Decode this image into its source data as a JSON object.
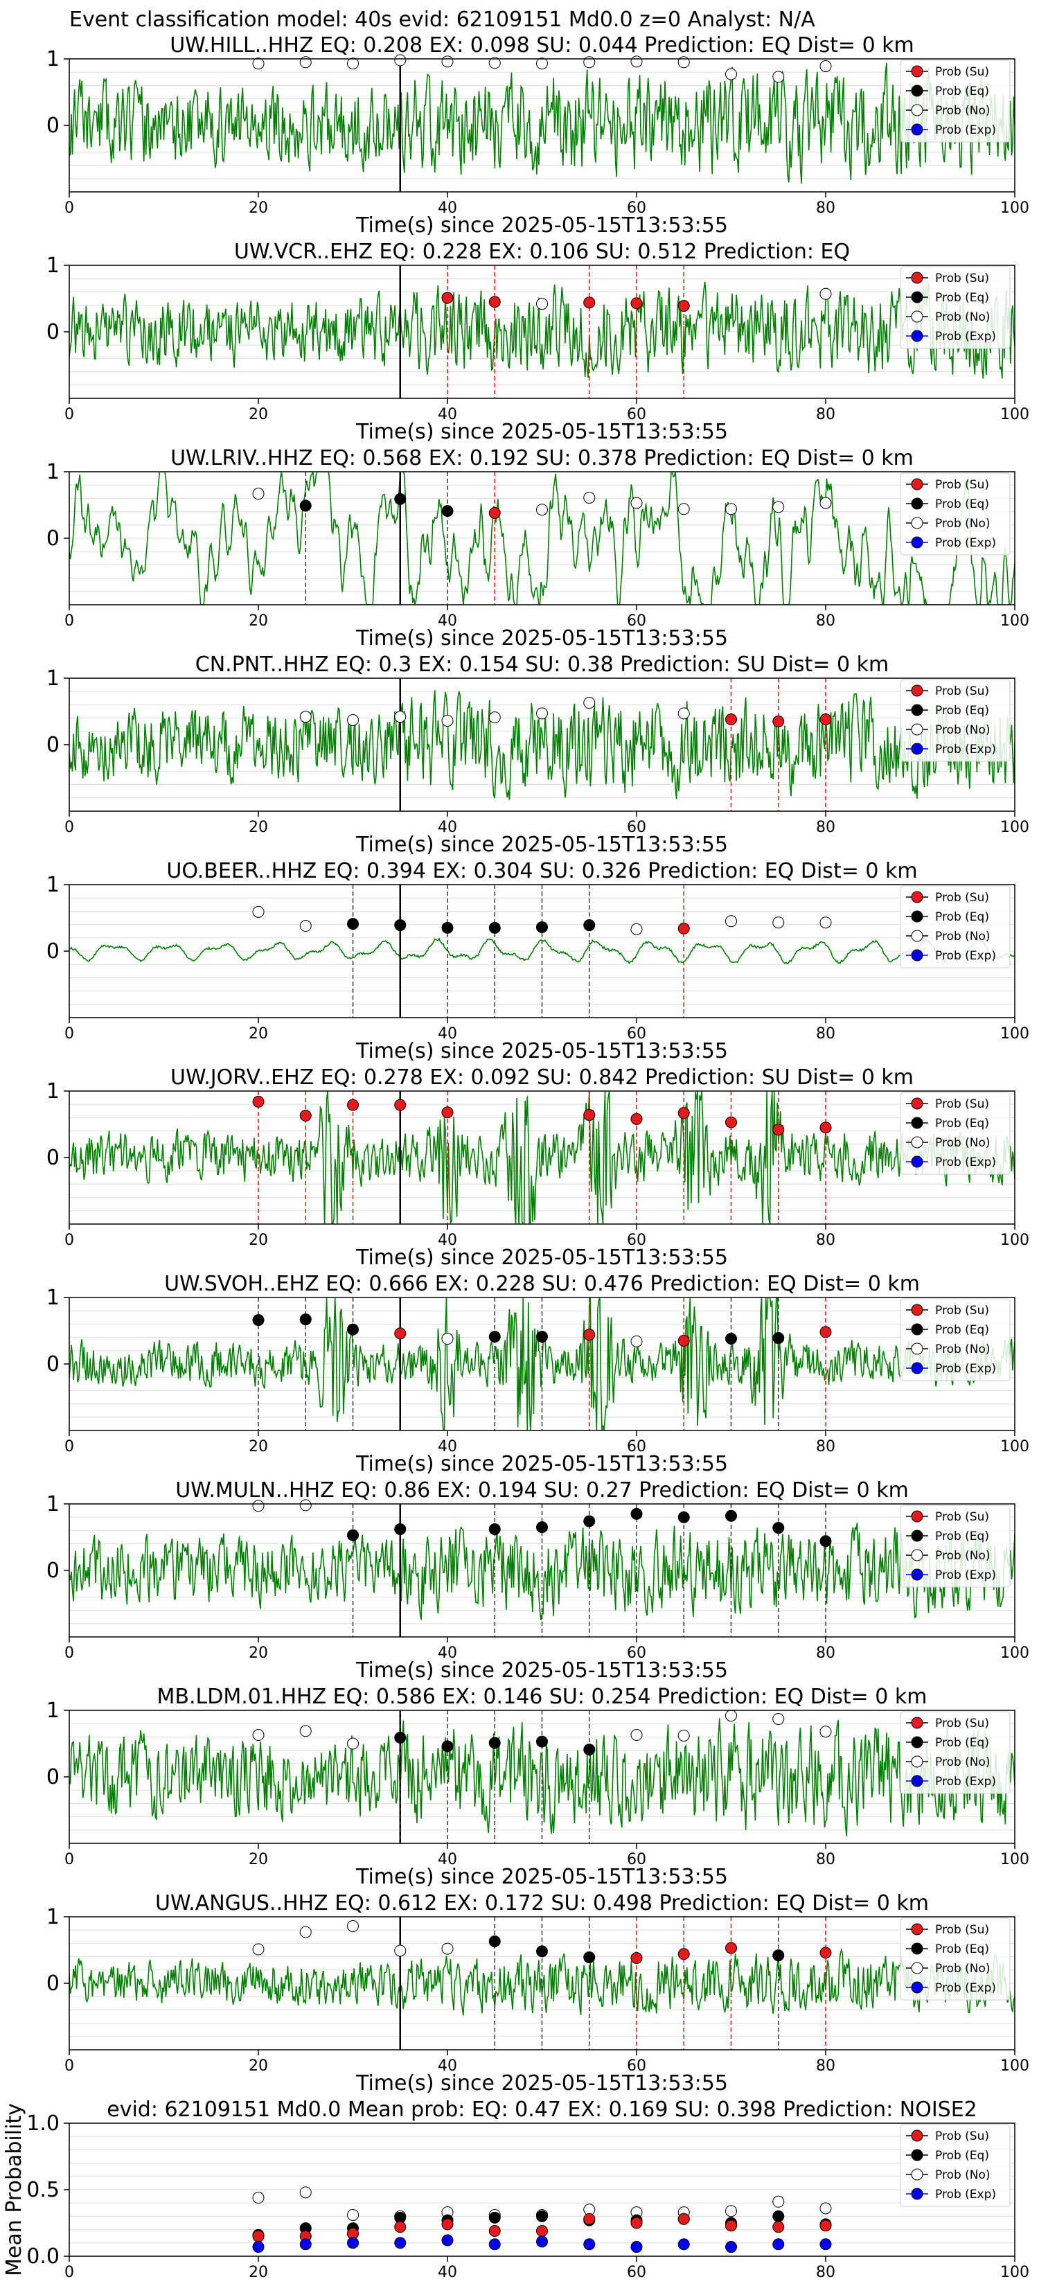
{
  "figure": {
    "suptitle": "Event classification model: 40s evid: 62109151 Md0.0 z=0 Analyst: N/A",
    "legend_labels": [
      "Prob (Su)",
      "Prob (Eq)",
      "Prob (No)",
      "Prob (Exp)"
    ],
    "colors": {
      "su": "#e41a1c",
      "eq": "#000000",
      "no": "#ffffff",
      "exp": "#0000ee",
      "waveform": "#008000",
      "su_line": "#ff0000",
      "eq_line": "#333333"
    },
    "xlabel": "Time(s) since 2025-05-15T13:53:55",
    "x_ticks": [
      "0",
      "20",
      "40",
      "60",
      "80",
      "100"
    ],
    "y_ticks": [
      "1",
      "0"
    ],
    "mean_y_ticks": [
      "1.0",
      "0.5",
      "0.0"
    ],
    "mean_ylabel": "Mean Probability"
  },
  "chart_data": [
    {
      "type": "line",
      "station": "UW.HILL..HHZ",
      "title": "UW.HILL..HHZ   EQ: 0.208  EX: 0.098  SU: 0.044   Prediction: EQ    Dist= 0 km",
      "xlim": [
        0,
        100
      ],
      "ylim": [
        -1,
        1
      ],
      "arrival": 35,
      "seed": 11,
      "character": "noisy",
      "amp": 0.55,
      "points": [
        [
          20,
          "no",
          0.93
        ],
        [
          25,
          "no",
          0.95
        ],
        [
          30,
          "no",
          0.93
        ],
        [
          35,
          "no",
          0.98
        ],
        [
          40,
          "no",
          0.96
        ],
        [
          45,
          "no",
          0.94
        ],
        [
          50,
          "no",
          0.93
        ],
        [
          55,
          "no",
          0.95
        ],
        [
          60,
          "no",
          0.96
        ],
        [
          65,
          "no",
          0.95
        ],
        [
          70,
          "no",
          0.77
        ],
        [
          75,
          "no",
          0.73
        ],
        [
          80,
          "no",
          0.89
        ]
      ],
      "markers": []
    },
    {
      "type": "line",
      "station": "UW.VCR..EHZ",
      "title": "UW.VCR..EHZ   EQ: 0.228  EX: 0.106  SU: 0.512   Prediction: EQ",
      "xlim": [
        0,
        100
      ],
      "ylim": [
        -1,
        1
      ],
      "arrival": 35,
      "seed": 23,
      "character": "noisy",
      "amp": 0.45,
      "points": [
        [
          40,
          "su",
          0.51
        ],
        [
          45,
          "su",
          0.45
        ],
        [
          50,
          "no",
          0.42
        ],
        [
          55,
          "su",
          0.44
        ],
        [
          60,
          "su",
          0.43
        ],
        [
          65,
          "su",
          0.39
        ],
        [
          80,
          "no",
          0.57
        ]
      ],
      "markers": [
        [
          40,
          "su"
        ],
        [
          45,
          "su"
        ],
        [
          55,
          "su"
        ],
        [
          60,
          "su"
        ],
        [
          65,
          "su"
        ]
      ]
    },
    {
      "type": "line",
      "station": "UW.LRIV..HHZ",
      "title": "UW.LRIV..HHZ   EQ: 0.568  EX: 0.192  SU: 0.378   Prediction: EQ    Dist= 0 km",
      "xlim": [
        0,
        100
      ],
      "ylim": [
        -1,
        1
      ],
      "arrival": 35,
      "seed": 37,
      "character": "smooth",
      "amp": 0.55,
      "points": [
        [
          20,
          "no",
          0.67
        ],
        [
          25,
          "eq",
          0.49
        ],
        [
          35,
          "eq",
          0.59
        ],
        [
          40,
          "eq",
          0.41
        ],
        [
          45,
          "su",
          0.38
        ],
        [
          50,
          "no",
          0.43
        ],
        [
          55,
          "no",
          0.61
        ],
        [
          60,
          "no",
          0.53
        ],
        [
          65,
          "no",
          0.44
        ],
        [
          70,
          "no",
          0.44
        ],
        [
          75,
          "no",
          0.47
        ],
        [
          80,
          "no",
          0.53
        ]
      ],
      "markers": [
        [
          25,
          "eq"
        ],
        [
          40,
          "eq"
        ],
        [
          45,
          "su"
        ]
      ]
    },
    {
      "type": "line",
      "station": "CN.PNT..HHZ",
      "title": "CN.PNT..HHZ   EQ: 0.3  EX: 0.154  SU: 0.38   Prediction: SU    Dist= 0 km",
      "xlim": [
        0,
        100
      ],
      "ylim": [
        -1,
        1
      ],
      "arrival": 35,
      "seed": 41,
      "character": "noisy",
      "amp": 0.5,
      "points": [
        [
          25,
          "no",
          0.42
        ],
        [
          30,
          "no",
          0.37
        ],
        [
          35,
          "no",
          0.42
        ],
        [
          40,
          "no",
          0.36
        ],
        [
          45,
          "no",
          0.41
        ],
        [
          50,
          "no",
          0.47
        ],
        [
          55,
          "no",
          0.63
        ],
        [
          65,
          "no",
          0.47
        ],
        [
          70,
          "su",
          0.38
        ],
        [
          75,
          "su",
          0.35
        ],
        [
          80,
          "su",
          0.38
        ]
      ],
      "markers": [
        [
          70,
          "su"
        ],
        [
          75,
          "su"
        ],
        [
          80,
          "su"
        ]
      ]
    },
    {
      "type": "line",
      "station": "UO.BEER..HHZ",
      "title": "UO.BEER..HHZ   EQ: 0.394  EX: 0.304  SU: 0.326   Prediction: EQ    Dist= 0 km",
      "xlim": [
        0,
        100
      ],
      "ylim": [
        -1,
        1
      ],
      "arrival": 35,
      "seed": 53,
      "character": "calm",
      "amp": 0.12,
      "points": [
        [
          20,
          "no",
          0.59
        ],
        [
          25,
          "no",
          0.38
        ],
        [
          30,
          "eq",
          0.41
        ],
        [
          35,
          "eq",
          0.39
        ],
        [
          40,
          "eq",
          0.35
        ],
        [
          45,
          "eq",
          0.35
        ],
        [
          50,
          "eq",
          0.36
        ],
        [
          55,
          "eq",
          0.39
        ],
        [
          60,
          "no",
          0.33
        ],
        [
          65,
          "su",
          0.34
        ],
        [
          70,
          "no",
          0.45
        ],
        [
          75,
          "no",
          0.43
        ],
        [
          80,
          "no",
          0.43
        ]
      ],
      "markers": [
        [
          30,
          "eq"
        ],
        [
          40,
          "eq"
        ],
        [
          45,
          "eq"
        ],
        [
          50,
          "eq"
        ],
        [
          55,
          "eq"
        ],
        [
          65,
          "su"
        ]
      ]
    },
    {
      "type": "line",
      "station": "UW.JORV..EHZ",
      "title": "UW.JORV..EHZ   EQ: 0.278  EX: 0.092  SU: 0.842   Prediction: SU    Dist= 0 km",
      "xlim": [
        0,
        100
      ],
      "ylim": [
        -1,
        1
      ],
      "arrival": 35,
      "seed": 67,
      "character": "spiky",
      "amp": 0.35,
      "points": [
        [
          20,
          "su",
          0.84
        ],
        [
          25,
          "su",
          0.63
        ],
        [
          30,
          "su",
          0.79
        ],
        [
          35,
          "su",
          0.79
        ],
        [
          40,
          "su",
          0.68
        ],
        [
          55,
          "su",
          0.64
        ],
        [
          60,
          "su",
          0.58
        ],
        [
          65,
          "su",
          0.67
        ],
        [
          70,
          "su",
          0.53
        ],
        [
          75,
          "su",
          0.42
        ],
        [
          80,
          "su",
          0.45
        ]
      ],
      "markers": [
        [
          20,
          "su"
        ],
        [
          25,
          "su"
        ],
        [
          30,
          "su"
        ],
        [
          40,
          "su"
        ],
        [
          55,
          "su"
        ],
        [
          60,
          "su"
        ],
        [
          65,
          "su"
        ],
        [
          70,
          "su"
        ],
        [
          75,
          "su"
        ],
        [
          80,
          "su"
        ]
      ]
    },
    {
      "type": "line",
      "station": "UW.SVOH..EHZ",
      "title": "UW.SVOH..EHZ   EQ: 0.666  EX: 0.228  SU: 0.476   Prediction: EQ    Dist= 0 km",
      "xlim": [
        0,
        100
      ],
      "ylim": [
        -1,
        1
      ],
      "arrival": 35,
      "seed": 79,
      "character": "spiky",
      "amp": 0.3,
      "points": [
        [
          20,
          "eq",
          0.66
        ],
        [
          25,
          "eq",
          0.67
        ],
        [
          30,
          "eq",
          0.52
        ],
        [
          35,
          "su",
          0.46
        ],
        [
          40,
          "no",
          0.38
        ],
        [
          45,
          "eq",
          0.41
        ],
        [
          50,
          "eq",
          0.41
        ],
        [
          55,
          "su",
          0.44
        ],
        [
          60,
          "no",
          0.34
        ],
        [
          65,
          "su",
          0.35
        ],
        [
          70,
          "eq",
          0.38
        ],
        [
          75,
          "eq",
          0.39
        ],
        [
          80,
          "su",
          0.48
        ]
      ],
      "markers": [
        [
          20,
          "eq"
        ],
        [
          25,
          "eq"
        ],
        [
          30,
          "eq"
        ],
        [
          45,
          "eq"
        ],
        [
          50,
          "eq"
        ],
        [
          55,
          "su"
        ],
        [
          65,
          "su"
        ],
        [
          70,
          "eq"
        ],
        [
          75,
          "eq"
        ],
        [
          80,
          "su"
        ]
      ]
    },
    {
      "type": "line",
      "station": "UW.MULN..HHZ",
      "title": "UW.MULN..HHZ   EQ: 0.86  EX: 0.194  SU: 0.27   Prediction: EQ    Dist= 0 km",
      "xlim": [
        0,
        100
      ],
      "ylim": [
        -1,
        1
      ],
      "arrival": 35,
      "seed": 83,
      "character": "noisy",
      "amp": 0.45,
      "points": [
        [
          20,
          "no",
          0.97
        ],
        [
          25,
          "no",
          0.98
        ],
        [
          30,
          "eq",
          0.53
        ],
        [
          35,
          "eq",
          0.62
        ],
        [
          45,
          "eq",
          0.62
        ],
        [
          50,
          "eq",
          0.65
        ],
        [
          55,
          "eq",
          0.74
        ],
        [
          60,
          "eq",
          0.85
        ],
        [
          65,
          "eq",
          0.8
        ],
        [
          70,
          "eq",
          0.82
        ],
        [
          75,
          "eq",
          0.64
        ],
        [
          80,
          "eq",
          0.44
        ]
      ],
      "markers": [
        [
          30,
          "eq"
        ],
        [
          45,
          "eq"
        ],
        [
          50,
          "eq"
        ],
        [
          55,
          "eq"
        ],
        [
          60,
          "eq"
        ],
        [
          65,
          "eq"
        ],
        [
          70,
          "eq"
        ],
        [
          75,
          "eq"
        ],
        [
          80,
          "eq"
        ]
      ]
    },
    {
      "type": "line",
      "station": "MB.LDM.01.HHZ",
      "title": "MB.LDM.01.HHZ   EQ: 0.586  EX: 0.146  SU: 0.254   Prediction: EQ    Dist= 0 km",
      "xlim": [
        0,
        100
      ],
      "ylim": [
        -1,
        1
      ],
      "arrival": 35,
      "seed": 97,
      "character": "noisy",
      "amp": 0.55,
      "points": [
        [
          20,
          "no",
          0.63
        ],
        [
          25,
          "no",
          0.69
        ],
        [
          30,
          "no",
          0.5
        ],
        [
          35,
          "eq",
          0.59
        ],
        [
          40,
          "eq",
          0.46
        ],
        [
          45,
          "eq",
          0.51
        ],
        [
          50,
          "eq",
          0.53
        ],
        [
          55,
          "eq",
          0.41
        ],
        [
          60,
          "no",
          0.63
        ],
        [
          65,
          "no",
          0.62
        ],
        [
          70,
          "no",
          0.92
        ],
        [
          75,
          "no",
          0.87
        ],
        [
          80,
          "no",
          0.68
        ]
      ],
      "markers": [
        [
          35,
          "eq"
        ],
        [
          40,
          "eq"
        ],
        [
          45,
          "eq"
        ],
        [
          50,
          "eq"
        ],
        [
          55,
          "eq"
        ]
      ]
    },
    {
      "type": "line",
      "station": "UW.ANGUS..HHZ",
      "title": "UW.ANGUS..HHZ   EQ: 0.612  EX: 0.172  SU: 0.498   Prediction: EQ    Dist= 0 km",
      "xlim": [
        0,
        100
      ],
      "ylim": [
        -1,
        1
      ],
      "arrival": 35,
      "seed": 101,
      "character": "noisy",
      "amp": 0.3,
      "points": [
        [
          20,
          "no",
          0.51
        ],
        [
          25,
          "no",
          0.77
        ],
        [
          30,
          "no",
          0.86
        ],
        [
          35,
          "no",
          0.49
        ],
        [
          40,
          "no",
          0.52
        ],
        [
          45,
          "eq",
          0.63
        ],
        [
          50,
          "eq",
          0.48
        ],
        [
          55,
          "eq",
          0.39
        ],
        [
          60,
          "su",
          0.38
        ],
        [
          65,
          "su",
          0.44
        ],
        [
          70,
          "su",
          0.53
        ],
        [
          75,
          "eq",
          0.42
        ],
        [
          80,
          "su",
          0.46
        ]
      ],
      "markers": [
        [
          45,
          "eq"
        ],
        [
          50,
          "eq"
        ],
        [
          55,
          "eq"
        ],
        [
          60,
          "su"
        ],
        [
          65,
          "su"
        ],
        [
          70,
          "su"
        ],
        [
          75,
          "eq"
        ],
        [
          80,
          "su"
        ]
      ]
    },
    {
      "type": "scatter",
      "title": "evid: 62109151  Md0.0   Mean prob:   EQ: 0.47  EX: 0.169  SU: 0.398   Prediction: NOISE2",
      "xlim": [
        0,
        100
      ],
      "ylim": [
        0,
        1
      ],
      "ylabel": "Mean Probability",
      "series": [
        {
          "name": "Prob (No)",
          "key": "no",
          "x": [
            20,
            25,
            30,
            35,
            40,
            45,
            50,
            55,
            60,
            65,
            70,
            75,
            80
          ],
          "values": [
            0.44,
            0.48,
            0.31,
            0.3,
            0.33,
            0.31,
            0.31,
            0.35,
            0.33,
            0.33,
            0.34,
            0.41,
            0.36
          ]
        },
        {
          "name": "Prob (Eq)",
          "key": "eq",
          "x": [
            20,
            25,
            30,
            35,
            40,
            45,
            50,
            55,
            60,
            65,
            70,
            75,
            80
          ],
          "values": [
            0.16,
            0.21,
            0.21,
            0.29,
            0.27,
            0.29,
            0.3,
            0.27,
            0.27,
            0.28,
            0.25,
            0.3,
            0.24
          ]
        },
        {
          "name": "Prob (Su)",
          "key": "su",
          "x": [
            20,
            25,
            30,
            35,
            40,
            45,
            50,
            55,
            60,
            65,
            70,
            75,
            80
          ],
          "values": [
            0.15,
            0.15,
            0.17,
            0.22,
            0.24,
            0.19,
            0.19,
            0.28,
            0.25,
            0.28,
            0.23,
            0.22,
            0.23
          ]
        },
        {
          "name": "Prob (Exp)",
          "key": "exp",
          "x": [
            20,
            25,
            30,
            35,
            40,
            45,
            50,
            55,
            60,
            65,
            70,
            75,
            80
          ],
          "values": [
            0.07,
            0.09,
            0.1,
            0.1,
            0.12,
            0.09,
            0.11,
            0.09,
            0.07,
            0.09,
            0.07,
            0.09,
            0.09
          ]
        }
      ]
    }
  ]
}
